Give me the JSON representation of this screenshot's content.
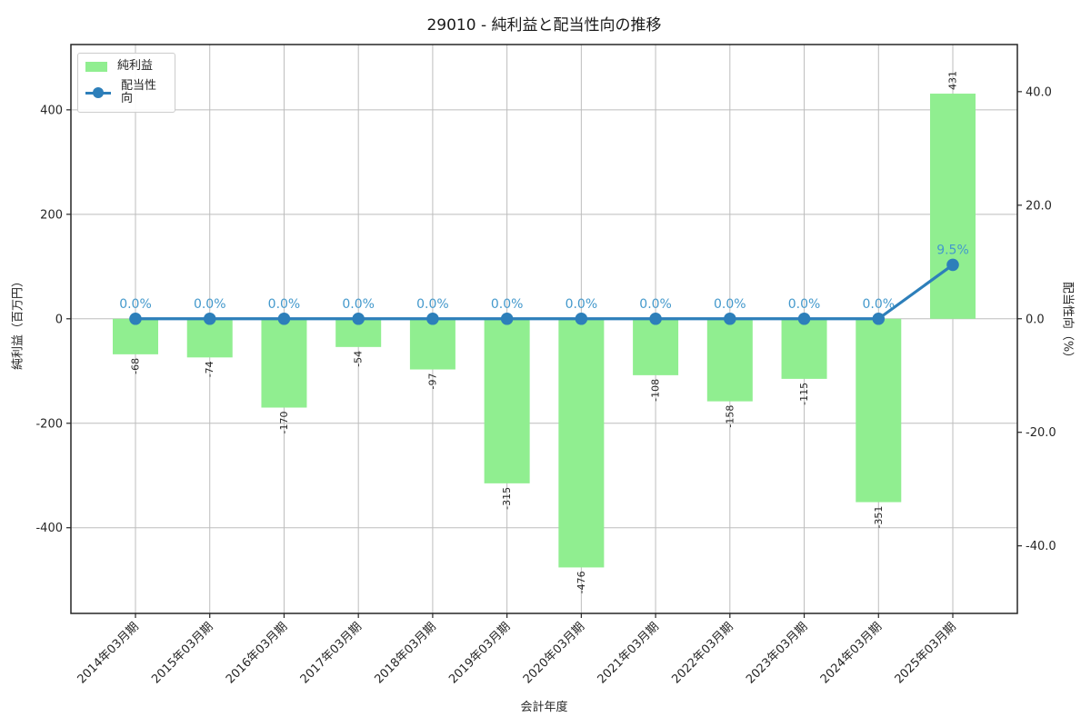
{
  "title": "29010 - 純利益と配当性向の推移",
  "chart_data": {
    "type": "bar",
    "subtype": "bar+line dual axis",
    "title": "29010 - 純利益と配当性向の推移",
    "categories": [
      "2014年03月期",
      "2015年03月期",
      "2016年03月期",
      "2017年03月期",
      "2018年03月期",
      "2019年03月期",
      "2020年03月期",
      "2021年03月期",
      "2022年03月期",
      "2023年03月期",
      "2024年03月期",
      "2025年03月期"
    ],
    "series": [
      {
        "name": "純利益",
        "type": "bar",
        "axis": "left",
        "color": "#90ee90",
        "values": [
          -68,
          -74,
          -170,
          -54,
          -97,
          -315,
          -476,
          -108,
          -158,
          -115,
          -351,
          431
        ],
        "value_labels": [
          "-68",
          "-74",
          "-170",
          "-54",
          "-97",
          "-315",
          "-476",
          "-108",
          "-158",
          "-115",
          "-351",
          "431"
        ],
        "value_label_color": "#262626"
      },
      {
        "name": "配当性向",
        "type": "line",
        "axis": "right",
        "color": "#2d7fba",
        "values": [
          0.0,
          0.0,
          0.0,
          0.0,
          0.0,
          0.0,
          0.0,
          0.0,
          0.0,
          0.0,
          0.0,
          9.5
        ],
        "point_labels": [
          "0.0%",
          "0.0%",
          "0.0%",
          "0.0%",
          "0.0%",
          "0.0%",
          "0.0%",
          "0.0%",
          "0.0%",
          "0.0%",
          "0.0%",
          "9.5%"
        ],
        "point_label_color": "#4499cc"
      }
    ],
    "xlabel": "会計年度",
    "left_axis": {
      "label": "純利益（百万円）",
      "tick_labels": [
        "400",
        "200",
        "0",
        "-200",
        "-400"
      ],
      "tick_values": [
        400,
        200,
        0,
        -200,
        -400
      ],
      "lim": [
        -564,
        525
      ]
    },
    "right_axis": {
      "label": "配当性向（%）",
      "tick_labels": [
        "40.0",
        "20.0",
        "0.0",
        "-20.0",
        "-40.0"
      ],
      "tick_values": [
        40,
        20,
        0,
        -20,
        -40
      ],
      "lim": [
        -51.9,
        48.3
      ]
    },
    "grid": true,
    "grid_color": "#bdbdbd",
    "spine_color": "#262626",
    "legend_position": "upper left"
  }
}
